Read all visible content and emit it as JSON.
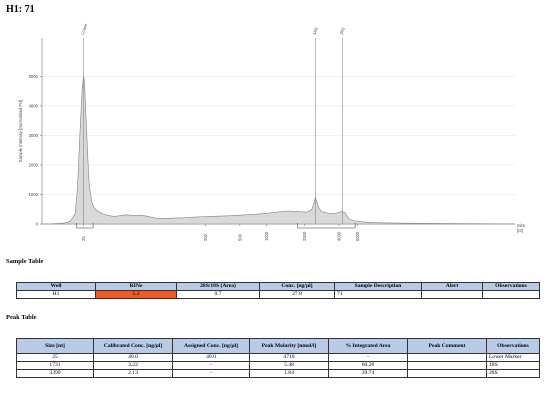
{
  "header": {
    "title": "H1: 71"
  },
  "chart_data": {
    "type": "line",
    "title": "",
    "xlabel": "Size [nt]",
    "x_unit_label": "Size\n[nt]",
    "ylabel": "Sample Intensity [Normalized FU]",
    "y_ticks": [
      0,
      1000,
      2000,
      3000,
      4000,
      5000
    ],
    "ylim": [
      0,
      6300
    ],
    "x_ticks": [
      "25",
      "200",
      "500",
      "1000",
      "2000",
      "4000",
      "6000"
    ],
    "peak_labels": [
      "Lower",
      "18S",
      "28S"
    ],
    "series": [
      {
        "x_index": [
          0.0,
          0.02,
          0.04,
          0.05,
          0.06,
          0.07,
          0.075,
          0.08,
          0.085,
          0.088,
          0.09,
          0.093,
          0.097,
          0.1,
          0.105,
          0.11,
          0.115,
          0.12,
          0.13,
          0.14,
          0.15,
          0.16,
          0.17,
          0.18,
          0.19,
          0.2,
          0.21,
          0.22,
          0.24,
          0.26,
          0.28,
          0.3,
          0.32,
          0.34,
          0.36,
          0.38,
          0.4,
          0.42,
          0.44,
          0.46,
          0.48,
          0.5,
          0.52,
          0.54,
          0.56,
          0.57,
          0.575,
          0.578,
          0.58,
          0.585,
          0.59,
          0.6,
          0.61,
          0.62,
          0.63,
          0.635,
          0.64,
          0.645,
          0.65,
          0.66,
          0.68,
          0.7,
          0.72,
          0.75,
          0.8,
          0.85,
          0.9,
          0.95,
          1.0
        ],
        "y": [
          0,
          5,
          20,
          40,
          90,
          350,
          1200,
          3000,
          4600,
          5000,
          4800,
          3600,
          2200,
          1300,
          760,
          560,
          470,
          420,
          330,
          290,
          260,
          270,
          300,
          310,
          290,
          280,
          300,
          270,
          200,
          190,
          200,
          210,
          230,
          250,
          260,
          270,
          280,
          300,
          320,
          340,
          370,
          410,
          440,
          420,
          400,
          480,
          700,
          900,
          800,
          560,
          430,
          380,
          360,
          360,
          400,
          430,
          390,
          260,
          160,
          110,
          70,
          50,
          40,
          30,
          20,
          15,
          10,
          5,
          3
        ]
      }
    ],
    "grid": true
  },
  "sample_table": {
    "label": "Sample Table",
    "headers": [
      "Well",
      "RINe",
      "28S/18S (Area)",
      "Conc. [ng/µl]",
      "Sample Description",
      "Alert",
      "Observations"
    ],
    "row": [
      "H1",
      "5.2",
      "0.7",
      "27.8",
      "71",
      "",
      ""
    ],
    "rine_color": "#f05a22"
  },
  "peak_table": {
    "label": "Peak Table",
    "headers": [
      "Size [nt]",
      "Calibrated Conc. [ng/µl]",
      "Assigned Conc. [ng/µl]",
      "Peak Molarity [nmol/l]",
      "% Integrated Area",
      "Peak Comment",
      "Observations"
    ],
    "rows": [
      [
        "25",
        "40.0",
        "40.0",
        "4710",
        "-",
        "",
        "Lower Marker"
      ],
      [
        "1731",
        "3.22",
        "-",
        "5.48",
        "60.26",
        "",
        "18S"
      ],
      [
        "3399",
        "2.13",
        "-",
        "1.84",
        "39.74",
        "",
        "28S"
      ]
    ]
  },
  "colors": {
    "header_fill": "#b7cbe6",
    "trace_fill": "#d9d9d9",
    "trace_stroke": "#808080"
  }
}
